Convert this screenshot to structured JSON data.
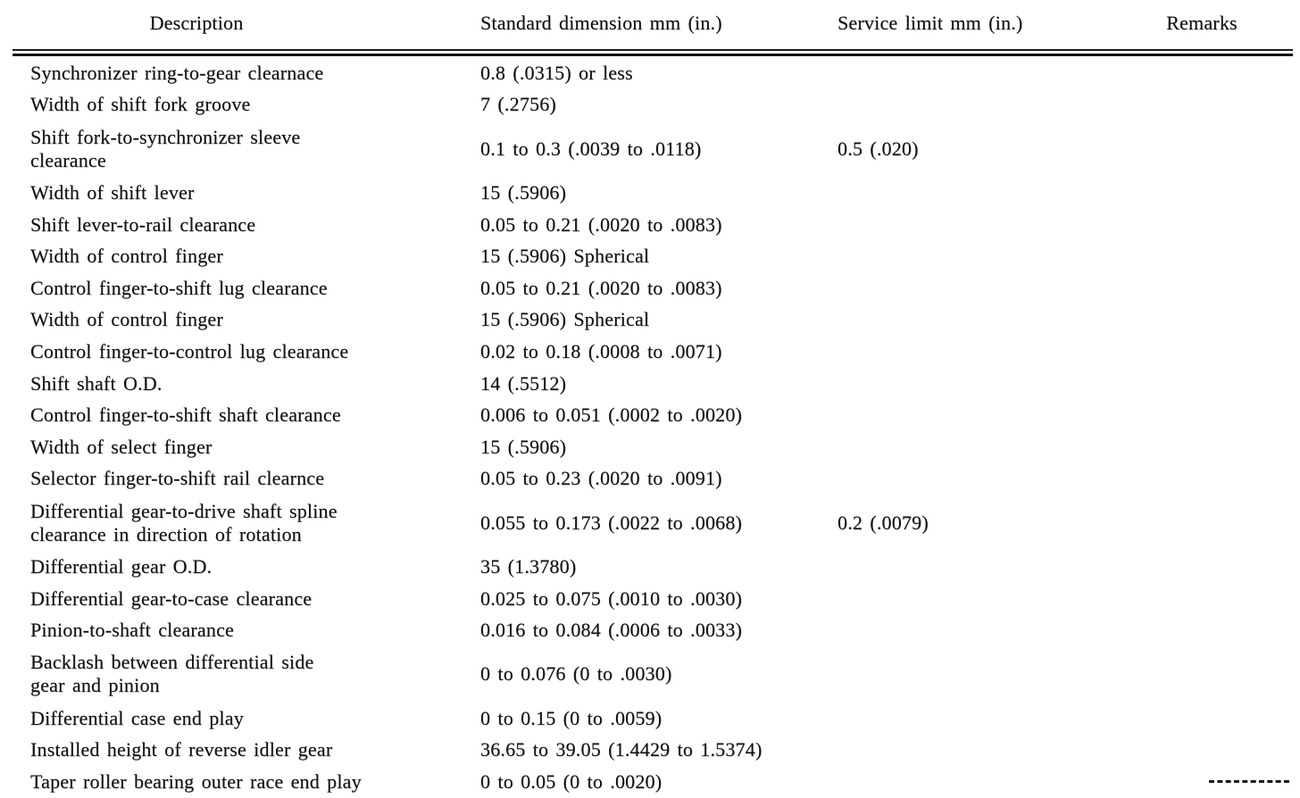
{
  "colors": {
    "paper": "#ffffff",
    "ink": "#111111"
  },
  "table": {
    "headers": {
      "description": "Description",
      "standard": "Standard dimension mm (in.)",
      "service": "Service limit mm (in.)",
      "remarks": "Remarks"
    },
    "rows": [
      {
        "description": "Synchronizer ring-to-gear clearnace",
        "standard": "0.8 (.0315) or less",
        "service": "",
        "remarks": ""
      },
      {
        "description": "Width of shift fork groove",
        "standard": "7 (.2756)",
        "service": "",
        "remarks": ""
      },
      {
        "description": "Shift fork-to-synchronizer sleeve\nclearance",
        "standard": "0.1 to 0.3 (.0039 to .0118)",
        "service": "0.5 (.020)",
        "remarks": ""
      },
      {
        "description": "Width of shift lever",
        "standard": "15 (.5906)",
        "service": "",
        "remarks": ""
      },
      {
        "description": "Shift lever-to-rail clearance",
        "standard": "0.05 to 0.21 (.0020 to .0083)",
        "service": "",
        "remarks": ""
      },
      {
        "description": "Width of control finger",
        "standard": "15 (.5906) Spherical",
        "service": "",
        "remarks": ""
      },
      {
        "description": "Control finger-to-shift lug clearance",
        "standard": "0.05 to 0.21 (.0020 to .0083)",
        "service": "",
        "remarks": ""
      },
      {
        "description": "Width of control finger",
        "standard": "15 (.5906) Spherical",
        "service": "",
        "remarks": ""
      },
      {
        "description": "Control finger-to-control lug clearance",
        "standard": "0.02 to 0.18 (.0008 to .0071)",
        "service": "",
        "remarks": ""
      },
      {
        "description": "Shift shaft O.D.",
        "standard": "14 (.5512)",
        "service": "",
        "remarks": ""
      },
      {
        "description": "Control finger-to-shift shaft clearance",
        "standard": "0.006 to 0.051 (.0002 to .0020)",
        "service": "",
        "remarks": ""
      },
      {
        "description": "Width of select finger",
        "standard": "15 (.5906)",
        "service": "",
        "remarks": ""
      },
      {
        "description": "Selector finger-to-shift rail clearnce",
        "standard": "0.05 to 0.23 (.0020 to .0091)",
        "service": "",
        "remarks": ""
      },
      {
        "description": "Differential gear-to-drive shaft spline\nclearance in direction of rotation",
        "standard": "0.055 to 0.173 (.0022 to .0068)",
        "service": "0.2 (.0079)",
        "remarks": ""
      },
      {
        "description": "Differential gear O.D.",
        "standard": "35 (1.3780)",
        "service": "",
        "remarks": ""
      },
      {
        "description": "Differential gear-to-case clearance",
        "standard": "0.025 to 0.075 (.0010 to .0030)",
        "service": "",
        "remarks": ""
      },
      {
        "description": "Pinion-to-shaft clearance",
        "standard": "0.016 to 0.084 (.0006 to .0033)",
        "service": "",
        "remarks": ""
      },
      {
        "description": "Backlash between differential side\ngear and pinion",
        "standard": "0 to 0.076 (0 to .0030)",
        "service": "",
        "remarks": ""
      },
      {
        "description": "Differential case end play",
        "standard": "0 to 0.15 (0 to .0059)",
        "service": "",
        "remarks": ""
      },
      {
        "description": "Installed height of reverse idler gear",
        "standard": "36.65 to 39.05 (1.4429 to 1.5374)",
        "service": "",
        "remarks": ""
      },
      {
        "description": "Taper roller bearing outer race end play",
        "standard": "0 to 0.05 (0 to .0020)",
        "service": "",
        "remarks": ""
      }
    ]
  }
}
